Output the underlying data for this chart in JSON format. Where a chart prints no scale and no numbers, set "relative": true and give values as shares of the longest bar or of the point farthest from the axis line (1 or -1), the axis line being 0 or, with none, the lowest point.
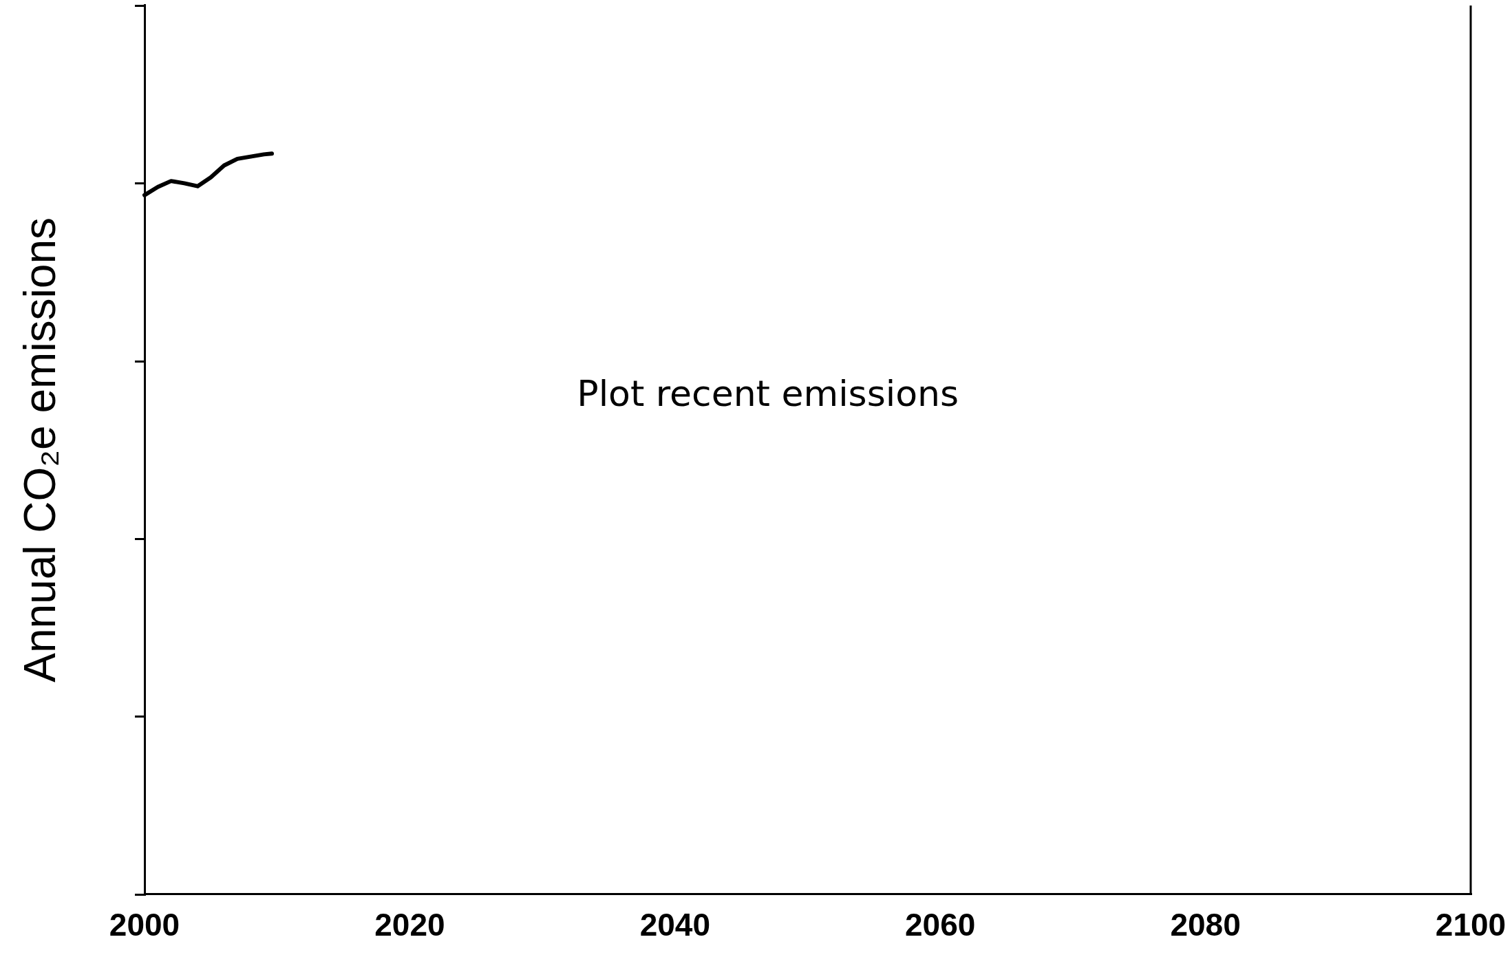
{
  "chart_data": {
    "type": "line",
    "relative": true,
    "ylabel": "Annual CO₂e emissions",
    "annotations": [
      "Plot recent emissions"
    ],
    "x": [
      2000,
      2001,
      2002,
      2003,
      2004,
      2005,
      2006,
      2007,
      2008,
      2009,
      2009.6
    ],
    "xlim": [
      2000,
      2100
    ],
    "xticks": [
      2000,
      2020,
      2040,
      2060,
      2080,
      2100
    ],
    "series": [
      {
        "color": "#000000",
        "values": [
          0.944,
          0.955,
          0.963,
          0.96,
          0.956,
          0.968,
          0.984,
          0.993,
          0.996,
          0.999,
          1
        ]
      }
    ],
    "grid": false,
    "legend": false,
    "marker": "none",
    "line_style": "solid"
  }
}
